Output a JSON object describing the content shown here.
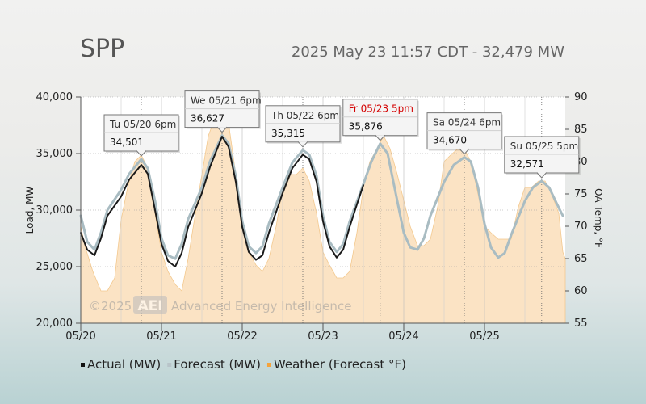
{
  "header": {
    "region": "SPP",
    "status": "2025 May 23 11:57 CDT - 32,479 MW"
  },
  "watermark": {
    "copyright": "©2025",
    "logo": "AEI",
    "company": "Advanced Energy Intelligence"
  },
  "colors": {
    "actual": "#1a1a1a",
    "forecast": "#a9bcc2",
    "weather_fill": "#fbe3c4",
    "weather_stroke": "#f3c98f",
    "grid": "#9a9a9a",
    "callout_red": "#d40000"
  },
  "chart_data": {
    "type": "line",
    "ylabel": "Load, MW",
    "y2label": "OA Temp, °F",
    "ylim": [
      20000,
      40000
    ],
    "y2lim": [
      55,
      90
    ],
    "xlim": [
      0,
      6
    ],
    "y_ticks": [
      {
        "v": 20000,
        "label": "20,000"
      },
      {
        "v": 25000,
        "label": "25,000"
      },
      {
        "v": 30000,
        "label": "30,000"
      },
      {
        "v": 35000,
        "label": "35,000"
      },
      {
        "v": 40000,
        "label": "40,000"
      }
    ],
    "y2_ticks": [
      55,
      60,
      65,
      70,
      75,
      80,
      85,
      90
    ],
    "x_ticks": [
      {
        "t": 0,
        "label": "05/20"
      },
      {
        "t": 1,
        "label": "05/21"
      },
      {
        "t": 2,
        "label": "05/22"
      },
      {
        "t": 3,
        "label": "05/23"
      },
      {
        "t": 4,
        "label": "05/24"
      },
      {
        "t": 5,
        "label": "05/25"
      }
    ],
    "minor_day_gridlines": [
      0.5,
      1.5,
      2.5,
      3.5,
      4.5,
      5.5
    ],
    "peak_markers": [
      0.75,
      1.75,
      2.75,
      3.708,
      4.75,
      5.708
    ],
    "legend": [
      {
        "key": "actual",
        "label": "Actual (MW)"
      },
      {
        "key": "forecast",
        "label": "Forecast (MW)"
      },
      {
        "key": "weather",
        "label": "Weather (Forecast °F)"
      }
    ],
    "callouts": [
      {
        "line1": "Tu 05/20 6pm",
        "line2": "34,501",
        "t": 0.75,
        "red": false
      },
      {
        "line1": "We 05/21 6pm",
        "line2": "36,627",
        "t": 1.75,
        "red": false
      },
      {
        "line1": "Th 05/22 6pm",
        "line2": "35,315",
        "t": 2.75,
        "red": false
      },
      {
        "line1": "Fr 05/23 5pm",
        "line2": "35,876",
        "t": 3.708,
        "red": true
      },
      {
        "line1": "Sa 05/24 6pm",
        "line2": "34,670",
        "t": 4.75,
        "red": false
      },
      {
        "line1": "Su 05/25 5pm",
        "line2": "32,571",
        "t": 5.708,
        "red": false
      }
    ],
    "series": [
      {
        "name": "Actual (MW)",
        "key": "actual",
        "points": [
          [
            0,
            28000
          ],
          [
            0.08,
            26500
          ],
          [
            0.17,
            26000
          ],
          [
            0.25,
            27500
          ],
          [
            0.33,
            29500
          ],
          [
            0.5,
            31200
          ],
          [
            0.6,
            32700
          ],
          [
            0.75,
            34000
          ],
          [
            0.83,
            33200
          ],
          [
            0.92,
            30000
          ],
          [
            1.0,
            27000
          ],
          [
            1.08,
            25500
          ],
          [
            1.17,
            25000
          ],
          [
            1.25,
            26200
          ],
          [
            1.33,
            28500
          ],
          [
            1.5,
            31500
          ],
          [
            1.6,
            33800
          ],
          [
            1.75,
            36500
          ],
          [
            1.83,
            35600
          ],
          [
            1.92,
            32500
          ],
          [
            2.0,
            28500
          ],
          [
            2.08,
            26300
          ],
          [
            2.17,
            25600
          ],
          [
            2.25,
            26000
          ],
          [
            2.33,
            28000
          ],
          [
            2.5,
            31500
          ],
          [
            2.62,
            33700
          ],
          [
            2.75,
            34900
          ],
          [
            2.83,
            34500
          ],
          [
            2.92,
            32500
          ],
          [
            3.0,
            29000
          ],
          [
            3.08,
            26800
          ],
          [
            3.17,
            25800
          ],
          [
            3.25,
            26500
          ],
          [
            3.33,
            28500
          ],
          [
            3.42,
            30500
          ],
          [
            3.5,
            32200
          ]
        ]
      },
      {
        "name": "Forecast (MW)",
        "key": "forecast",
        "points": [
          [
            0,
            29500
          ],
          [
            0.08,
            27200
          ],
          [
            0.17,
            26500
          ],
          [
            0.25,
            28000
          ],
          [
            0.33,
            30000
          ],
          [
            0.5,
            31800
          ],
          [
            0.6,
            33200
          ],
          [
            0.75,
            34500
          ],
          [
            0.83,
            33700
          ],
          [
            0.92,
            30800
          ],
          [
            1.0,
            27500
          ],
          [
            1.08,
            26000
          ],
          [
            1.17,
            25700
          ],
          [
            1.25,
            27000
          ],
          [
            1.33,
            29200
          ],
          [
            1.5,
            32000
          ],
          [
            1.6,
            34300
          ],
          [
            1.75,
            36600
          ],
          [
            1.83,
            35900
          ],
          [
            1.92,
            33000
          ],
          [
            2.0,
            29000
          ],
          [
            2.08,
            26800
          ],
          [
            2.17,
            26200
          ],
          [
            2.25,
            26800
          ],
          [
            2.33,
            28800
          ],
          [
            2.5,
            32000
          ],
          [
            2.62,
            34200
          ],
          [
            2.75,
            35300
          ],
          [
            2.83,
            34900
          ],
          [
            2.92,
            33000
          ],
          [
            3.0,
            29500
          ],
          [
            3.08,
            27200
          ],
          [
            3.17,
            26300
          ],
          [
            3.25,
            27000
          ],
          [
            3.33,
            29000
          ],
          [
            3.5,
            32300
          ],
          [
            3.6,
            34300
          ],
          [
            3.708,
            35876
          ],
          [
            3.8,
            35000
          ],
          [
            3.9,
            31500
          ],
          [
            4.0,
            28000
          ],
          [
            4.08,
            26700
          ],
          [
            4.17,
            26500
          ],
          [
            4.25,
            27500
          ],
          [
            4.33,
            29500
          ],
          [
            4.5,
            32500
          ],
          [
            4.62,
            34000
          ],
          [
            4.75,
            34670
          ],
          [
            4.83,
            34300
          ],
          [
            4.92,
            32000
          ],
          [
            5.0,
            28800
          ],
          [
            5.08,
            26700
          ],
          [
            5.17,
            25800
          ],
          [
            5.25,
            26200
          ],
          [
            5.33,
            27800
          ],
          [
            5.5,
            30800
          ],
          [
            5.6,
            32000
          ],
          [
            5.708,
            32571
          ],
          [
            5.8,
            32000
          ],
          [
            5.9,
            30500
          ],
          [
            5.97,
            29500
          ]
        ]
      },
      {
        "name": "Weather (Forecast °F)",
        "key": "weather",
        "points": [
          [
            0,
            70
          ],
          [
            0.05,
            67
          ],
          [
            0.15,
            63
          ],
          [
            0.25,
            60
          ],
          [
            0.33,
            60
          ],
          [
            0.42,
            62
          ],
          [
            0.5,
            71
          ],
          [
            0.58,
            76
          ],
          [
            0.67,
            80
          ],
          [
            0.75,
            81
          ],
          [
            0.83,
            79
          ],
          [
            0.92,
            72
          ],
          [
            1.0,
            66
          ],
          [
            1.08,
            63
          ],
          [
            1.17,
            61
          ],
          [
            1.25,
            60
          ],
          [
            1.33,
            65
          ],
          [
            1.42,
            72
          ],
          [
            1.5,
            78
          ],
          [
            1.58,
            84
          ],
          [
            1.67,
            87
          ],
          [
            1.75,
            88
          ],
          [
            1.83,
            86
          ],
          [
            1.92,
            78
          ],
          [
            2.0,
            70
          ],
          [
            2.08,
            66
          ],
          [
            2.17,
            64
          ],
          [
            2.25,
            63
          ],
          [
            2.33,
            65
          ],
          [
            2.42,
            70
          ],
          [
            2.5,
            76
          ],
          [
            2.58,
            78
          ],
          [
            2.67,
            78
          ],
          [
            2.75,
            79
          ],
          [
            2.83,
            77
          ],
          [
            2.92,
            72
          ],
          [
            3.0,
            66
          ],
          [
            3.08,
            64
          ],
          [
            3.17,
            62
          ],
          [
            3.25,
            62
          ],
          [
            3.33,
            63
          ],
          [
            3.42,
            69
          ],
          [
            3.5,
            76
          ],
          [
            3.58,
            80
          ],
          [
            3.67,
            82
          ],
          [
            3.75,
            84
          ],
          [
            3.83,
            82
          ],
          [
            3.92,
            78
          ],
          [
            4.0,
            74
          ],
          [
            4.08,
            70
          ],
          [
            4.17,
            67
          ],
          [
            4.25,
            67
          ],
          [
            4.33,
            68
          ],
          [
            4.42,
            73
          ],
          [
            4.5,
            80
          ],
          [
            4.58,
            81
          ],
          [
            4.67,
            82
          ],
          [
            4.75,
            82
          ],
          [
            4.83,
            80
          ],
          [
            4.92,
            75
          ],
          [
            5.0,
            70
          ],
          [
            5.08,
            69
          ],
          [
            5.17,
            68
          ],
          [
            5.25,
            68
          ],
          [
            5.33,
            68
          ],
          [
            5.42,
            73
          ],
          [
            5.5,
            76
          ],
          [
            5.58,
            76
          ],
          [
            5.67,
            77
          ],
          [
            5.75,
            77
          ],
          [
            5.83,
            75
          ],
          [
            5.92,
            72
          ],
          [
            5.97,
            66
          ],
          [
            6.0,
            65
          ]
        ]
      }
    ]
  }
}
